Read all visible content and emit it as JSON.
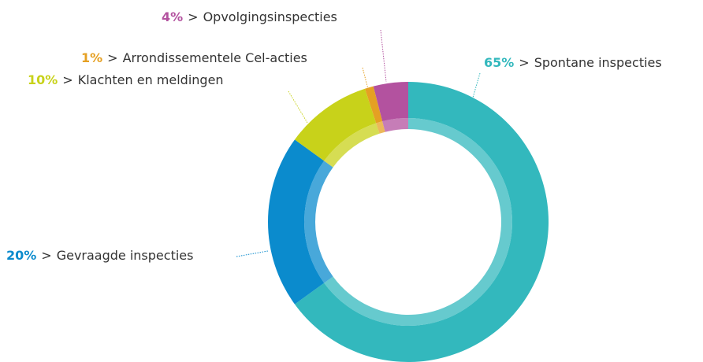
{
  "chart_data": {
    "type": "donut",
    "categories": [
      "Spontane inspecties",
      "Gevraagde inspecties",
      "Klachten en meldingen",
      "Arrondissementele Cel-acties",
      "Opvolgingsinspecties"
    ],
    "values": [
      65,
      20,
      10,
      1,
      4
    ],
    "value_labels": [
      "65%",
      "20%",
      "10%",
      "1%",
      "4%"
    ],
    "separator": ">",
    "colors": [
      "#33b8bd",
      "#0b8bcd",
      "#c8d21a",
      "#e5a023",
      "#b3529f"
    ]
  }
}
